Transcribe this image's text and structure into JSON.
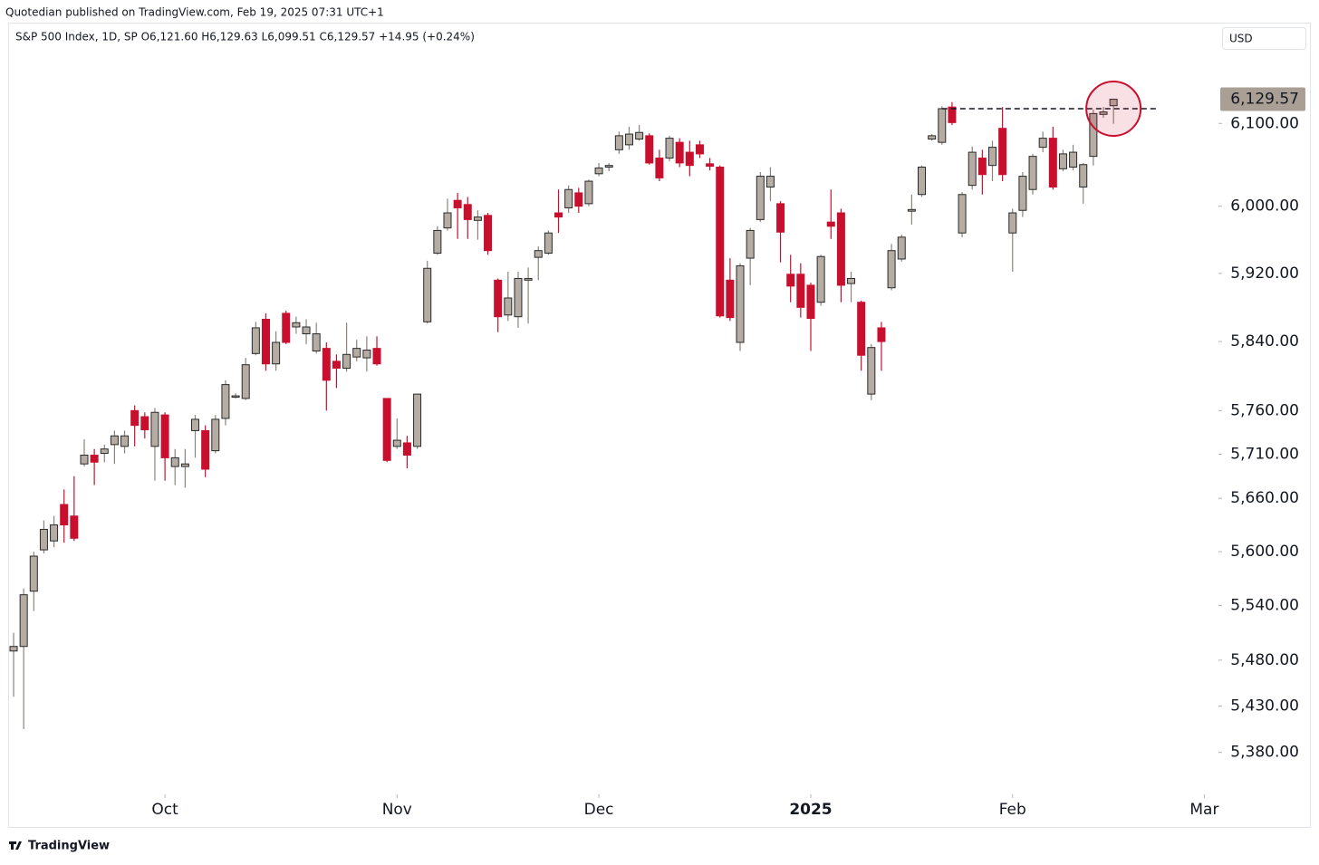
{
  "header": {
    "publisher": "Quotedian published on TradingView.com, Feb 19, 2025 07:31 UTC+1",
    "symbol_line": "S&P 500 Index, 1D, SP  O6,121.60  H6,129.63  L6,099.51  C6,129.57  +14.95 (+0.24%)",
    "currency_button": "USD"
  },
  "footer": {
    "brand": "TradingView"
  },
  "chart_data": {
    "type": "candlestick",
    "log_scale": true,
    "up_color": "#b5ada3",
    "down_color": "#c8102e",
    "open": [
      5490,
      5495,
      5556,
      5602,
      5612,
      5653,
      5640,
      5699,
      5709,
      5711,
      5721,
      5719,
      5760,
      5753,
      5719,
      5755,
      5696,
      5696,
      5737,
      5737,
      5714,
      5751,
      5776,
      5774,
      5826,
      5866,
      5814,
      5873,
      5857,
      5849,
      5829,
      5832,
      5817,
      5809,
      5822,
      5821,
      5832,
      5774,
      5719,
      5723,
      5719,
      5863,
      5944,
      5974,
      6007,
      6002,
      5983,
      5989,
      5912,
      5871,
      5869,
      5912,
      5939,
      5944,
      5992,
      5998,
      6016,
      6003,
      6039,
      6047,
      6068,
      6074,
      6081,
      6085,
      6058,
      6058,
      6077,
      6065,
      6074,
      6051,
      6047,
      5912,
      5839,
      5938,
      5984,
      6023,
      6003,
      5919,
      5919,
      5906,
      5886,
      5981,
      5992,
      5908,
      5886,
      5779,
      5856,
      5903,
      5937,
      5994,
      6014,
      6081,
      6077,
      6120,
      5968,
      6025,
      6058,
      6049,
      6094,
      5968,
      5995,
      6020,
      6071,
      6082,
      6045,
      6047,
      6023,
      6060,
      6111,
      6121.6
    ],
    "high": [
      5510,
      5559,
      5600,
      5635,
      5640,
      5670,
      5685,
      5727,
      5716,
      5721,
      5737,
      5737,
      5766,
      5758,
      5763,
      5758,
      5716,
      5716,
      5755,
      5743,
      5755,
      5795,
      5780,
      5821,
      5863,
      5873,
      5852,
      5876,
      5869,
      5866,
      5862,
      5839,
      5825,
      5862,
      5842,
      5846,
      5846,
      5774,
      5751,
      5731,
      5779,
      5935,
      5976,
      6009,
      6016,
      6011,
      5995,
      5992,
      5914,
      5922,
      5922,
      5927,
      5952,
      5971,
      6020,
      6025,
      6022,
      6032,
      6052,
      6052,
      6090,
      6096,
      6098,
      6088,
      6068,
      6085,
      6082,
      6079,
      6079,
      6058,
      6049,
      5938,
      5932,
      5974,
      6041,
      6047,
      6006,
      5942,
      5932,
      5909,
      5942,
      6020,
      5997,
      5922,
      5888,
      5837,
      5863,
      5955,
      5966,
      6014,
      6049,
      6087,
      6121,
      6126,
      6017,
      6072,
      6068,
      6079,
      6120,
      5997,
      6041,
      6063,
      6090,
      6096,
      6068,
      6074,
      6052,
      6117,
      6120,
      6129.63
    ],
    "low": [
      5440,
      5405,
      5534,
      5598,
      5605,
      5610,
      5612,
      5696,
      5675,
      5701,
      5699,
      5711,
      5719,
      5728,
      5680,
      5680,
      5675,
      5672,
      5706,
      5684,
      5711,
      5743,
      5774,
      5772,
      5824,
      5806,
      5806,
      5837,
      5849,
      5837,
      5826,
      5760,
      5786,
      5805,
      5817,
      5805,
      5812,
      5701,
      5716,
      5694,
      5716,
      5861,
      5942,
      5971,
      5961,
      5961,
      5960,
      5942,
      5851,
      5864,
      5856,
      5861,
      5912,
      5942,
      5968,
      5992,
      5992,
      6000,
      6036,
      6042,
      6063,
      6068,
      6079,
      6050,
      6030,
      6054,
      6047,
      6036,
      6058,
      6043,
      5868,
      5864,
      5829,
      5906,
      5981,
      6006,
      5933,
      5886,
      5868,
      5829,
      5882,
      5961,
      5886,
      5886,
      5806,
      5772,
      5806,
      5900,
      5934,
      5978,
      6011,
      6079,
      6074,
      6098,
      5963,
      6020,
      6014,
      6030,
      6030,
      5922,
      5987,
      6014,
      6065,
      6020,
      6042,
      6043,
      6003,
      6049,
      6107,
      6099.51
    ],
    "close": [
      5495,
      5552,
      5595,
      5625,
      5630,
      5630,
      5615,
      5709,
      5701,
      5716,
      5731,
      5731,
      5743,
      5738,
      5758,
      5706,
      5706,
      5699,
      5750,
      5693,
      5750,
      5790,
      5777,
      5813,
      5856,
      5814,
      5839,
      5839,
      5862,
      5857,
      5849,
      5795,
      5809,
      5825,
      5832,
      5830,
      5814,
      5703,
      5726,
      5709,
      5779,
      5926,
      5971,
      5992,
      5998,
      5984,
      5987,
      5947,
      5869,
      5891,
      5914,
      5914,
      5947,
      5968,
      5987,
      6020,
      6000,
      6030,
      6046,
      6049,
      6085,
      6087,
      6089,
      6052,
      6034,
      6082,
      6052,
      6049,
      6063,
      6048,
      5870,
      5868,
      5929,
      5971,
      6036,
      6036,
      5969,
      5905,
      5880,
      5867,
      5940,
      5976,
      5906,
      5914,
      5824,
      5833,
      5840,
      5947,
      5963,
      5996,
      6047,
      6085,
      6118,
      6101,
      6014,
      6065,
      6038,
      6071,
      6038,
      5992,
      6036,
      6060,
      6082,
      6023,
      6063,
      6065,
      6050,
      6112,
      6114,
      6129.57
    ],
    "xlim": [
      -0.45,
      119.4
    ],
    "xticks": [
      {
        "value": 15,
        "label": "Oct"
      },
      {
        "value": 38,
        "label": "Nov"
      },
      {
        "value": 58,
        "label": "Dec"
      },
      {
        "value": 79,
        "label": "2025"
      },
      {
        "value": 99,
        "label": "Feb"
      },
      {
        "value": 118,
        "label": "Mar"
      }
    ],
    "ylim": [
      5337,
      6224
    ],
    "yticks": [
      {
        "value": 6100,
        "label": "6,100.00"
      },
      {
        "value": 6000,
        "label": "6,000.00"
      },
      {
        "value": 5920,
        "label": "5,920.00"
      },
      {
        "value": 5840,
        "label": "5,840.00"
      },
      {
        "value": 5760,
        "label": "5,760.00"
      },
      {
        "value": 5710,
        "label": "5,710.00"
      },
      {
        "value": 5660,
        "label": "5,660.00"
      },
      {
        "value": 5600,
        "label": "5,600.00"
      },
      {
        "value": 5540,
        "label": "5,540.00"
      },
      {
        "value": 5480,
        "label": "5,480.00"
      },
      {
        "value": 5430,
        "label": "5,430.00"
      },
      {
        "value": 5380,
        "label": "5,380.00"
      }
    ],
    "last_price": {
      "value": 6129.57,
      "label": "6,129.57"
    },
    "reference_line": {
      "value": 6118
    }
  }
}
